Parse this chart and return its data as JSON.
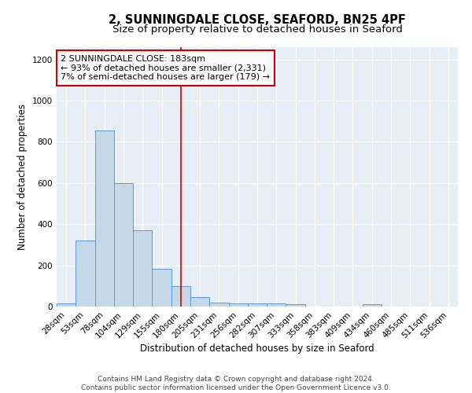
{
  "title": "2, SUNNINGDALE CLOSE, SEAFORD, BN25 4PF",
  "subtitle": "Size of property relative to detached houses in Seaford",
  "xlabel": "Distribution of detached houses by size in Seaford",
  "ylabel": "Number of detached properties",
  "bar_labels": [
    "28sqm",
    "53sqm",
    "78sqm",
    "104sqm",
    "129sqm",
    "155sqm",
    "180sqm",
    "205sqm",
    "231sqm",
    "256sqm",
    "282sqm",
    "307sqm",
    "333sqm",
    "358sqm",
    "383sqm",
    "409sqm",
    "434sqm",
    "460sqm",
    "485sqm",
    "511sqm",
    "536sqm"
  ],
  "bar_values": [
    15,
    320,
    855,
    600,
    370,
    185,
    100,
    47,
    20,
    15,
    15,
    15,
    10,
    0,
    0,
    0,
    12,
    0,
    0,
    0,
    0
  ],
  "bar_color": "#c5d8e8",
  "bar_edge_color": "#5b9bd5",
  "background_color": "#e8eef5",
  "grid_color": "#ffffff",
  "fig_bg_color": "#ffffff",
  "vline_x": 6,
  "vline_color": "#cc0000",
  "annotation_line1": "2 SUNNINGDALE CLOSE: 183sqm",
  "annotation_line2": "← 93% of detached houses are smaller (2,331)",
  "annotation_line3": "7% of semi-detached houses are larger (179) →",
  "annotation_box_color": "#ffffff",
  "annotation_box_edge": "#cc0000",
  "footer_text": "Contains HM Land Registry data © Crown copyright and database right 2024.\nContains public sector information licensed under the Open Government Licence v3.0.",
  "ylim": [
    0,
    1260
  ],
  "yticks": [
    0,
    200,
    400,
    600,
    800,
    1000,
    1200
  ],
  "title_fontsize": 10.5,
  "subtitle_fontsize": 9.5,
  "xlabel_fontsize": 8.5,
  "ylabel_fontsize": 8.5,
  "tick_fontsize": 7.5,
  "annotation_fontsize": 8,
  "footer_fontsize": 6.5
}
